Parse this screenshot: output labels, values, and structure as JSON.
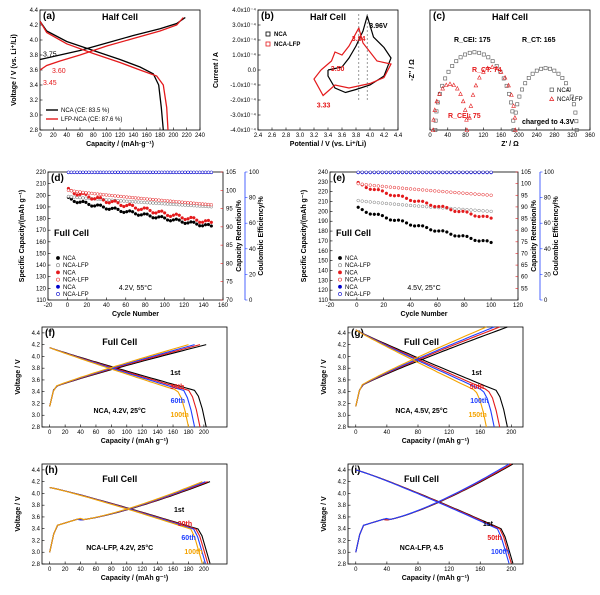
{
  "chart_data": [
    {
      "id": "a",
      "panel_label": "(a)",
      "type": "line",
      "title": "Half Cell",
      "xlabel": "Capacity / (mAh·g⁻¹)",
      "ylabel": "Voltage / V (vs. Li⁺/Li)",
      "xlim": [
        0,
        240
      ],
      "ylim": [
        2.8,
        4.4
      ],
      "xticks": [
        "0",
        "20",
        "40",
        "60",
        "80",
        "100",
        "120",
        "140",
        "160",
        "180",
        "200",
        "220",
        "240"
      ],
      "yticks": [
        "2.8",
        "3.0",
        "3.2",
        "3.4",
        "3.6",
        "3.8",
        "4.0",
        "4.2",
        "4.4"
      ],
      "series": [
        {
          "name": "NCA (CE: 83.5 %)",
          "color": "#000000",
          "charge": [
            [
              0,
              3.74
            ],
            [
              10,
              3.76
            ],
            [
              30,
              3.8
            ],
            [
              60,
              3.86
            ],
            [
              100,
              3.96
            ],
            [
              140,
              4.06
            ],
            [
              180,
              4.15
            ],
            [
              205,
              4.22
            ],
            [
              218,
              4.3
            ]
          ],
          "discharge": [
            [
              0,
              4.25
            ],
            [
              10,
              4.12
            ],
            [
              40,
              3.98
            ],
            [
              80,
              3.86
            ],
            [
              120,
              3.74
            ],
            [
              150,
              3.64
            ],
            [
              170,
              3.55
            ],
            [
              178,
              3.4
            ],
            [
              182,
              3.1
            ],
            [
              185,
              2.8
            ]
          ]
        },
        {
          "name": "LFP-NCA (CE: 87.6 %)",
          "color": "#e41a1c",
          "charge": [
            [
              0,
              3.6
            ],
            [
              10,
              3.66
            ],
            [
              30,
              3.72
            ],
            [
              60,
              3.8
            ],
            [
              100,
              3.92
            ],
            [
              140,
              4.02
            ],
            [
              180,
              4.12
            ],
            [
              205,
              4.2
            ],
            [
              215,
              4.3
            ]
          ],
          "discharge": [
            [
              0,
              4.25
            ],
            [
              10,
              4.1
            ],
            [
              40,
              3.95
            ],
            [
              80,
              3.82
            ],
            [
              120,
              3.7
            ],
            [
              150,
              3.6
            ],
            [
              175,
              3.52
            ],
            [
              185,
              3.4
            ],
            [
              190,
              3.1
            ],
            [
              192,
              2.8
            ]
          ]
        }
      ],
      "annotations": [
        {
          "text": "3.75",
          "color": "#000000"
        },
        {
          "text": "3.60",
          "color": "#e41a1c"
        },
        {
          "text": "3.45",
          "color": "#e41a1c"
        }
      ]
    },
    {
      "id": "b",
      "panel_label": "(b)",
      "type": "line",
      "title": "Half Cell",
      "xlabel": "Potential / V (vs. Li⁺/Li)",
      "ylabel": "Current / A",
      "xlim": [
        2.4,
        4.4
      ],
      "ylim": [
        -0.0004,
        0.0004
      ],
      "xticks": [
        "2.4",
        "2.6",
        "2.8",
        "3.0",
        "3.2",
        "3.4",
        "3.6",
        "3.8",
        "4.0",
        "4.2",
        "4.4"
      ],
      "yticks": [
        "-4.0x10⁻⁴",
        "-3.0x10⁻⁴",
        "-2.0x10⁻⁴",
        "-1.0x10⁻⁴",
        "0.0",
        "1.0x10⁻⁴",
        "2.0x10⁻⁴",
        "3.0x10⁻⁴",
        "4.0x10⁻⁴"
      ],
      "series": [
        {
          "name": "NCA",
          "color": "#000000",
          "points": [
            [
              3.4,
              0
            ],
            [
              3.6,
              2e-05
            ],
            [
              3.7,
              8e-05
            ],
            [
              3.8,
              0.00016
            ],
            [
              3.9,
              0.00026
            ],
            [
              3.96,
              0.00036
            ],
            [
              4.05,
              0.00022
            ],
            [
              4.2,
              0.00015
            ],
            [
              4.3,
              8e-05
            ],
            [
              4.2,
              -4e-05
            ],
            [
              4.0,
              -0.0001
            ],
            [
              3.8,
              -0.00013
            ],
            [
              3.65,
              -0.00015
            ],
            [
              3.5,
              -0.00012
            ],
            [
              3.4,
              -4e-05
            ]
          ]
        },
        {
          "name": "NCA-LFP",
          "color": "#e41a1c",
          "points": [
            [
              3.3,
              0
            ],
            [
              3.45,
              6e-05
            ],
            [
              3.5,
              0.00012
            ],
            [
              3.6,
              0.0001
            ],
            [
              3.7,
              0.00016
            ],
            [
              3.84,
              0.00028
            ],
            [
              3.9,
              0.00018
            ],
            [
              4.1,
              6e-05
            ],
            [
              4.3,
              4e-05
            ],
            [
              4.2,
              -5e-05
            ],
            [
              4.0,
              -9e-05
            ],
            [
              3.7,
              -0.00012
            ],
            [
              3.5,
              -0.0001
            ],
            [
              3.33,
              -0.00017
            ],
            [
              3.2,
              -6e-05
            ]
          ]
        }
      ],
      "annotations": [
        {
          "text": "3.96V",
          "color": "#000000"
        },
        {
          "text": "3.84",
          "color": "#e41a1c"
        },
        {
          "text": "3.50",
          "color": "#e41a1c"
        },
        {
          "text": "3.33",
          "color": "#e41a1c"
        }
      ]
    },
    {
      "id": "c",
      "panel_label": "(c)",
      "type": "scatter",
      "title": "Half Cell",
      "xlabel": "Z' / Ω",
      "ylabel": "-Z'' / Ω",
      "xlim": [
        0,
        360
      ],
      "ylim": [
        0,
        80
      ],
      "xticks": [
        "0",
        "40",
        "80",
        "120",
        "160",
        "200",
        "240",
        "280",
        "320",
        "360"
      ],
      "series": [
        {
          "name": "NCA",
          "color": "#555555",
          "marker": "square"
        },
        {
          "name": "NCA-LFP",
          "color": "#e41a1c",
          "marker": "triangle"
        }
      ],
      "annotations": [
        {
          "text": "R_CEI: 175",
          "color": "#000000"
        },
        {
          "text": "R_CT: 165",
          "color": "#000000"
        },
        {
          "text": "R_CT: 74",
          "color": "#e41a1c"
        },
        {
          "text": "R_CEI: 75",
          "color": "#e41a1c"
        },
        {
          "text": "charged to 4.3V",
          "color": "#000000"
        }
      ]
    },
    {
      "id": "d",
      "panel_label": "(d)",
      "type": "scatter",
      "title": "Full Cell",
      "condition": "4.2V, 55°C",
      "xlabel": "Cycle Number",
      "ylabel": "Specific Capacity/(mAh g⁻¹)",
      "y2label": "Capacity Retention/%",
      "y3label": "Coulombic Efficiency/%",
      "xlim": [
        -20,
        160
      ],
      "ylim": [
        110,
        220
      ],
      "y2lim": [
        70,
        105
      ],
      "y3lim": [
        0,
        100
      ],
      "xticks": [
        "-20",
        "0",
        "20",
        "40",
        "60",
        "80",
        "100",
        "120",
        "140",
        "160"
      ],
      "yticks": [
        "110",
        "120",
        "130",
        "140",
        "150",
        "160",
        "170",
        "180",
        "190",
        "200",
        "210",
        "220"
      ],
      "y2ticks": [
        "70",
        "75",
        "80",
        "85",
        "90",
        "95",
        "100",
        "105"
      ],
      "y3ticks": [
        "0",
        "20",
        "40",
        "60",
        "80",
        "100"
      ],
      "series": [
        {
          "name": "NCA",
          "group": "capacity",
          "color": "#000000",
          "start": 197,
          "end": 173
        },
        {
          "name": "NCA-LFP",
          "group": "capacity",
          "color": "#777777",
          "start": 199,
          "end": 190
        },
        {
          "name": "NCA",
          "group": "retention",
          "color": "#e41a1c",
          "start": 100,
          "end": 91
        },
        {
          "name": "NCA-LFP",
          "group": "retention",
          "color": "#e41a1c",
          "start": 100,
          "end": 96
        },
        {
          "name": "NCA",
          "group": "efficiency",
          "color": "#0000cc",
          "start": 99.6,
          "end": 99.6
        },
        {
          "name": "NCA-LFP",
          "group": "efficiency",
          "color": "#0000cc",
          "start": 99.8,
          "end": 99.8
        }
      ]
    },
    {
      "id": "e",
      "panel_label": "(e)",
      "type": "scatter",
      "title": "Full Cell",
      "condition": "4.5V, 25°C",
      "xlabel": "Cycle Number",
      "ylabel": "Specific Capacity/(mAh g⁻¹)",
      "y2label": "Capacity Retention/%",
      "y3label": "Coulombic Efficiency/%",
      "xlim": [
        -20,
        120
      ],
      "ylim": [
        110,
        240
      ],
      "y2lim": [
        50,
        105
      ],
      "y3lim": [
        0,
        100
      ],
      "xticks": [
        "-20",
        "0",
        "20",
        "40",
        "60",
        "80",
        "100",
        "120"
      ],
      "yticks": [
        "110",
        "120",
        "130",
        "140",
        "150",
        "160",
        "170",
        "180",
        "190",
        "200",
        "210",
        "220",
        "230",
        "240"
      ],
      "y2ticks": [
        "55",
        "60",
        "65",
        "70",
        "75",
        "80",
        "85",
        "90",
        "95",
        "100",
        "105"
      ],
      "y3ticks": [
        "0",
        "20",
        "40",
        "60",
        "80",
        "100"
      ],
      "series": [
        {
          "name": "NCA",
          "group": "capacity",
          "color": "#000000",
          "start": 203,
          "end": 168
        },
        {
          "name": "NCA-LFP",
          "group": "capacity",
          "color": "#777777",
          "start": 211,
          "end": 200
        },
        {
          "name": "NCA",
          "group": "retention",
          "color": "#e41a1c",
          "start": 100,
          "end": 85
        },
        {
          "name": "NCA-LFP",
          "group": "retention",
          "color": "#e41a1c",
          "start": 100,
          "end": 95
        },
        {
          "name": "NCA",
          "group": "efficiency",
          "color": "#0000cc",
          "start": 99.5,
          "end": 99.5
        },
        {
          "name": "NCA-LFP",
          "group": "efficiency",
          "color": "#0000cc",
          "start": 99.8,
          "end": 99.8
        }
      ]
    },
    {
      "id": "f",
      "panel_label": "(f)",
      "type": "line",
      "title": "Full Cell",
      "condition": "NCA, 4.2V, 25°C",
      "xlabel": "Capacity / (mAh g⁻¹)",
      "ylabel": "Voltage / V",
      "xlim": [
        -10,
        230
      ],
      "ylim": [
        2.8,
        4.5
      ],
      "xticks": [
        "0",
        "20",
        "40",
        "60",
        "80",
        "100",
        "120",
        "140",
        "160",
        "180",
        "200"
      ],
      "yticks": [
        "2.8",
        "3.0",
        "3.2",
        "3.4",
        "3.6",
        "3.8",
        "4.0",
        "4.2",
        "4.4"
      ],
      "series": [
        {
          "name": "1st",
          "color": "#000000",
          "capacity": 203
        },
        {
          "name": "30th",
          "color": "#e41a1c",
          "capacity": 195
        },
        {
          "name": "60th",
          "color": "#1f3fff",
          "capacity": 188
        },
        {
          "name": "100th",
          "color": "#f4a300",
          "capacity": 180
        }
      ]
    },
    {
      "id": "g",
      "panel_label": "(g)",
      "type": "line",
      "title": "Full Cell",
      "condition": "NCA, 4.5V, 25°C",
      "xlabel": "Capacity / (mAh g⁻¹)",
      "ylabel": "Voltage / V",
      "xlim": [
        -10,
        215
      ],
      "ylim": [
        2.8,
        4.5
      ],
      "xticks": [
        "0",
        "40",
        "80",
        "120",
        "160",
        "200"
      ],
      "yticks": [
        "2.8",
        "3.0",
        "3.2",
        "3.4",
        "3.6",
        "3.8",
        "4.0",
        "4.2",
        "4.4"
      ],
      "series": [
        {
          "name": "1st",
          "color": "#000000",
          "capacity": 195
        },
        {
          "name": "50th",
          "color": "#e41a1c",
          "capacity": 185
        },
        {
          "name": "100th",
          "color": "#1f3fff",
          "capacity": 178
        },
        {
          "name": "150th",
          "color": "#f4a300",
          "capacity": 168
        }
      ]
    },
    {
      "id": "h",
      "panel_label": "(h)",
      "type": "line",
      "title": "Full Cell",
      "condition": "NCA-LFP, 4.2V, 25°C",
      "xlabel": "Capacity / (mAh g⁻¹)",
      "ylabel": "Voltage / V",
      "xlim": [
        -10,
        230
      ],
      "ylim": [
        2.8,
        4.5
      ],
      "xticks": [
        "0",
        "20",
        "40",
        "60",
        "80",
        "100",
        "120",
        "140",
        "160",
        "180",
        "200"
      ],
      "yticks": [
        "2.8",
        "3.0",
        "3.2",
        "3.4",
        "3.6",
        "3.8",
        "4.0",
        "4.2",
        "4.4"
      ],
      "series": [
        {
          "name": "1st",
          "color": "#000000",
          "capacity": 208
        },
        {
          "name": "30th",
          "color": "#e41a1c",
          "capacity": 205
        },
        {
          "name": "60th",
          "color": "#1f3fff",
          "capacity": 202
        },
        {
          "name": "100th",
          "color": "#f4a300",
          "capacity": 198
        }
      ]
    },
    {
      "id": "i",
      "panel_label": "(i)",
      "type": "line",
      "title": "Full Cell",
      "condition": "NCA-LFP, 4.5",
      "xlabel": "Capacity / (mAh g⁻¹)",
      "ylabel": "Voltage / V",
      "xlim": [
        -10,
        215
      ],
      "ylim": [
        2.8,
        4.5
      ],
      "xticks": [
        "0",
        "40",
        "80",
        "120",
        "160",
        "200"
      ],
      "yticks": [
        "2.8",
        "3.0",
        "3.2",
        "3.4",
        "3.6",
        "3.8",
        "4.0",
        "4.2",
        "4.4"
      ],
      "series": [
        {
          "name": "1st",
          "color": "#000000",
          "capacity": 202
        },
        {
          "name": "50th",
          "color": "#e41a1c",
          "capacity": 200
        },
        {
          "name": "100th",
          "color": "#1f3fff",
          "capacity": 197
        }
      ]
    }
  ]
}
